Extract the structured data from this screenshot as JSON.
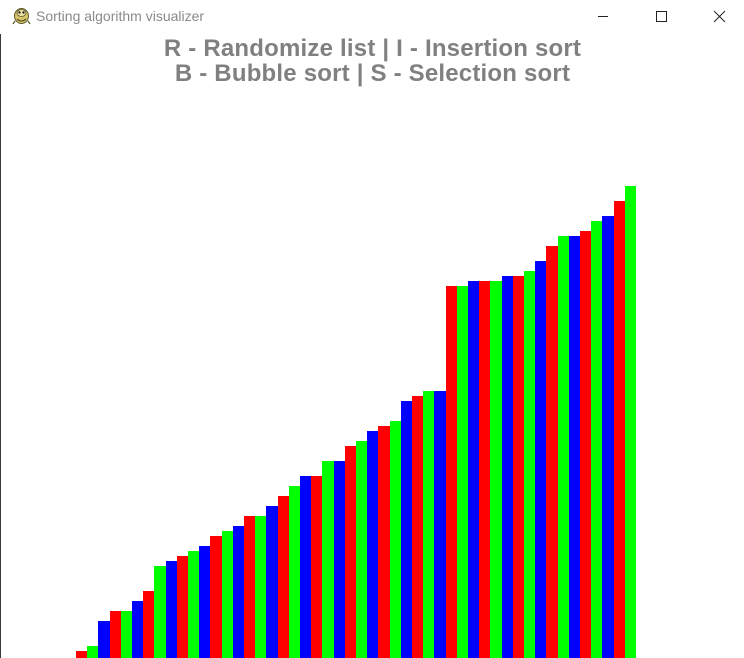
{
  "window": {
    "title": "Sorting algorithm visualizer",
    "icon": "pygame-snake-icon",
    "controls": [
      "minimize-icon",
      "maximize-icon",
      "close-icon"
    ]
  },
  "instructions": {
    "line1": "R - Randomize list | I - Insertion sort",
    "line2": "B - Bubble sort | S - Selection sort"
  },
  "colors": {
    "text": "#808080",
    "bar_cycle": [
      "#ff0000",
      "#00ff00",
      "#0000ff"
    ],
    "background": "#ffffff"
  },
  "chart_data": {
    "type": "bar",
    "state": "sorted ascending",
    "values": [
      7,
      12,
      37,
      47,
      47,
      57,
      67,
      92,
      97,
      102,
      107,
      112,
      122,
      127,
      132,
      142,
      142,
      152,
      162,
      172,
      182,
      182,
      197,
      197,
      212,
      217,
      227,
      232,
      237,
      257,
      262,
      267,
      267,
      372,
      372,
      377,
      377,
      377,
      382,
      382,
      387,
      397,
      412,
      422,
      422,
      427,
      437,
      442,
      457,
      472
    ],
    "colors": [
      "#ff0000",
      "#00ff00",
      "#0000ff",
      "#ff0000",
      "#00ff00",
      "#0000ff",
      "#ff0000",
      "#00ff00",
      "#0000ff",
      "#ff0000",
      "#00ff00",
      "#0000ff",
      "#ff0000",
      "#00ff00",
      "#0000ff",
      "#ff0000",
      "#00ff00",
      "#0000ff",
      "#ff0000",
      "#00ff00",
      "#0000ff",
      "#ff0000",
      "#00ff00",
      "#0000ff",
      "#ff0000",
      "#00ff00",
      "#0000ff",
      "#ff0000",
      "#00ff00",
      "#0000ff",
      "#ff0000",
      "#00ff00",
      "#0000ff",
      "#ff0000",
      "#00ff00",
      "#0000ff",
      "#ff0000",
      "#00ff00",
      "#0000ff",
      "#ff0000",
      "#00ff00",
      "#0000ff",
      "#ff0000",
      "#00ff00",
      "#0000ff",
      "#ff0000",
      "#00ff00",
      "#0000ff",
      "#ff0000",
      "#00ff00"
    ],
    "ylim": [
      0,
      472
    ]
  }
}
